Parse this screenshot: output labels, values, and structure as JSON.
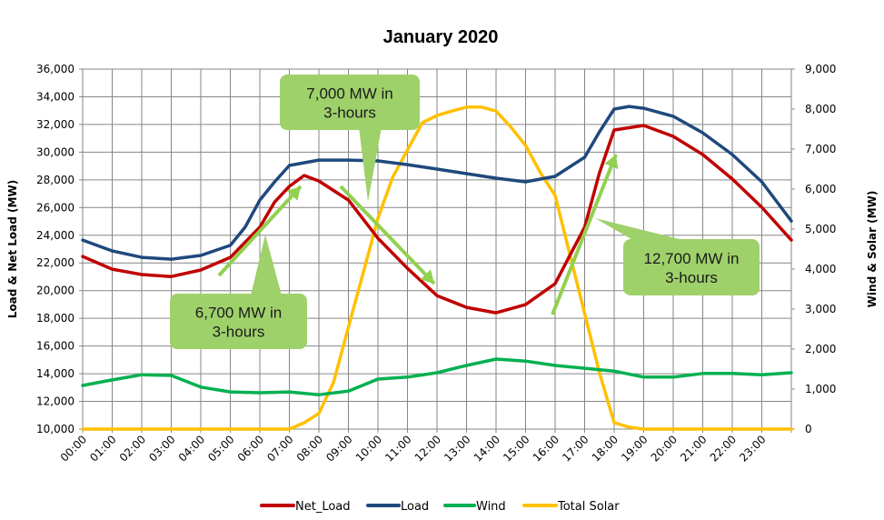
{
  "chart_data": {
    "type": "line",
    "title": "January 2020",
    "xlabel": "",
    "ylabel": "Load & Net Load (MW)",
    "y2label": "Wind & Solar (MW)",
    "ylim": [
      10000,
      36000
    ],
    "y2lim": [
      0,
      9000
    ],
    "yticks": [
      "10,000",
      "12,000",
      "14,000",
      "16,000",
      "18,000",
      "20,000",
      "22,000",
      "24,000",
      "26,000",
      "28,000",
      "30,000",
      "32,000",
      "34,000",
      "36,000"
    ],
    "y2ticks": [
      "0",
      "1,000",
      "2,000",
      "3,000",
      "4,000",
      "5,000",
      "6,000",
      "7,000",
      "8,000",
      "9,000"
    ],
    "xticks": [
      "00:00",
      "01:00",
      "02:00",
      "03:00",
      "04:00",
      "05:00",
      "06:00",
      "07:00",
      "08:00",
      "09:00",
      "10:00",
      "11:00",
      "12:00",
      "13:00",
      "14:00",
      "15:00",
      "16:00",
      "17:00",
      "18:00",
      "19:00",
      "20:00",
      "21:00",
      "22:00",
      "23:00"
    ],
    "grid": true,
    "legend_position": "bottom",
    "series": [
      {
        "name": "Net_Load",
        "axis": "left",
        "color": "#c00000",
        "points": [
          [
            "00:00",
            22470
          ],
          [
            "01:00",
            21550
          ],
          [
            "02:00",
            21160
          ],
          [
            "03:00",
            21020
          ],
          [
            "04:00",
            21490
          ],
          [
            "05:00",
            22400
          ],
          [
            "06:00",
            24580
          ],
          [
            "06:30",
            26400
          ],
          [
            "07:00",
            27530
          ],
          [
            "07:30",
            28320
          ],
          [
            "08:00",
            27920
          ],
          [
            "09:00",
            26540
          ],
          [
            "10:00",
            23780
          ],
          [
            "11:00",
            21610
          ],
          [
            "12:00",
            19640
          ],
          [
            "13:00",
            18790
          ],
          [
            "14:00",
            18400
          ],
          [
            "15:00",
            18990
          ],
          [
            "16:00",
            20500
          ],
          [
            "17:00",
            24580
          ],
          [
            "17:30",
            28500
          ],
          [
            "18:00",
            31600
          ],
          [
            "19:00",
            31930
          ],
          [
            "20:00",
            31140
          ],
          [
            "21:00",
            29830
          ],
          [
            "22:00",
            28060
          ],
          [
            "23:00",
            26020
          ],
          [
            "24:00",
            23650
          ]
        ]
      },
      {
        "name": "Load",
        "axis": "left",
        "color": "#1f497d",
        "points": [
          [
            "00:00",
            23650
          ],
          [
            "01:00",
            22870
          ],
          [
            "02:00",
            22400
          ],
          [
            "03:00",
            22270
          ],
          [
            "04:00",
            22540
          ],
          [
            "05:00",
            23270
          ],
          [
            "05:30",
            24580
          ],
          [
            "06:00",
            26540
          ],
          [
            "06:30",
            27860
          ],
          [
            "07:00",
            29040
          ],
          [
            "08:00",
            29430
          ],
          [
            "09:00",
            29430
          ],
          [
            "10:00",
            29370
          ],
          [
            "11:00",
            29100
          ],
          [
            "12:00",
            28780
          ],
          [
            "13:00",
            28450
          ],
          [
            "14:00",
            28120
          ],
          [
            "15:00",
            27860
          ],
          [
            "16:00",
            28250
          ],
          [
            "17:00",
            29630
          ],
          [
            "17:30",
            31470
          ],
          [
            "18:00",
            33110
          ],
          [
            "18:30",
            33300
          ],
          [
            "19:00",
            33170
          ],
          [
            "20:00",
            32590
          ],
          [
            "21:00",
            31400
          ],
          [
            "22:00",
            29830
          ],
          [
            "23:00",
            27860
          ],
          [
            "24:00",
            25030
          ]
        ]
      },
      {
        "name": "Wind",
        "axis": "right",
        "color": "#00b050",
        "points": [
          [
            "00:00",
            1090
          ],
          [
            "01:00",
            1230
          ],
          [
            "02:00",
            1360
          ],
          [
            "03:00",
            1340
          ],
          [
            "04:00",
            1050
          ],
          [
            "05:00",
            930
          ],
          [
            "06:00",
            910
          ],
          [
            "07:00",
            930
          ],
          [
            "08:00",
            860
          ],
          [
            "09:00",
            950
          ],
          [
            "10:00",
            1250
          ],
          [
            "11:00",
            1300
          ],
          [
            "12:00",
            1410
          ],
          [
            "13:00",
            1590
          ],
          [
            "14:00",
            1750
          ],
          [
            "15:00",
            1700
          ],
          [
            "16:00",
            1590
          ],
          [
            "17:00",
            1520
          ],
          [
            "18:00",
            1450
          ],
          [
            "19:00",
            1300
          ],
          [
            "20:00",
            1300
          ],
          [
            "21:00",
            1390
          ],
          [
            "22:00",
            1390
          ],
          [
            "23:00",
            1360
          ],
          [
            "24:00",
            1410
          ]
        ]
      },
      {
        "name": "Total Solar",
        "axis": "right",
        "color": "#ffc000",
        "points": [
          [
            "00:00",
            0
          ],
          [
            "07:00",
            0
          ],
          [
            "07:30",
            160
          ],
          [
            "08:00",
            390
          ],
          [
            "08:30",
            1180
          ],
          [
            "09:00",
            2550
          ],
          [
            "09:30",
            3910
          ],
          [
            "10:00",
            5270
          ],
          [
            "10:30",
            6300
          ],
          [
            "11:00",
            6980
          ],
          [
            "11:30",
            7660
          ],
          [
            "12:00",
            7840
          ],
          [
            "12:30",
            7950
          ],
          [
            "13:00",
            8050
          ],
          [
            "13:30",
            8050
          ],
          [
            "14:00",
            7950
          ],
          [
            "14:30",
            7550
          ],
          [
            "15:00",
            7090
          ],
          [
            "15:30",
            6410
          ],
          [
            "16:00",
            5840
          ],
          [
            "16:30",
            4360
          ],
          [
            "17:00",
            2890
          ],
          [
            "17:30",
            1410
          ],
          [
            "18:00",
            160
          ],
          [
            "18:30",
            50
          ],
          [
            "19:00",
            0
          ],
          [
            "24:00",
            0
          ]
        ]
      }
    ],
    "annotations": [
      {
        "text": [
          "6,700 MW in",
          "3-hours"
        ]
      },
      {
        "text": [
          "7,000 MW in",
          "3-hours"
        ]
      },
      {
        "text": [
          "12,700 MW in",
          "3-hours"
        ]
      }
    ],
    "annotation_color": "#92d050"
  }
}
